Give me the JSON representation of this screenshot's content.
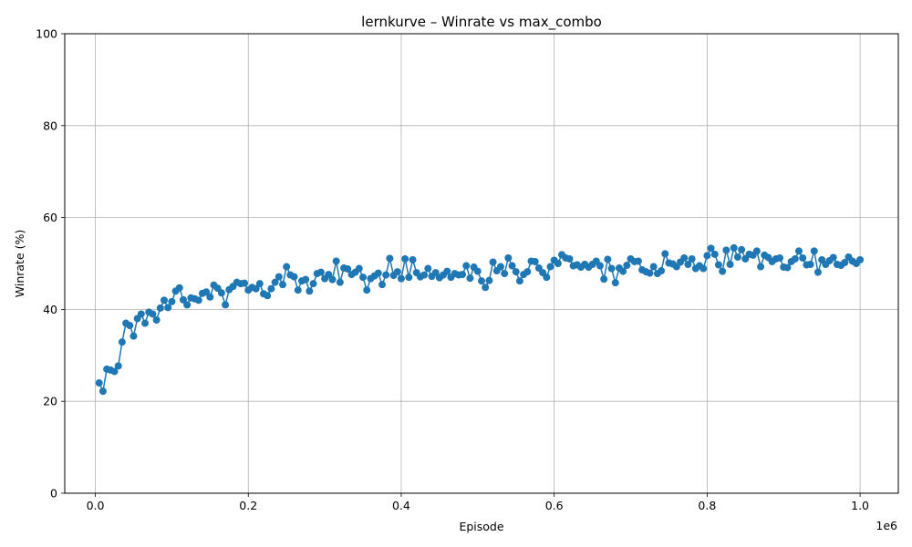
{
  "chart_data": {
    "type": "line",
    "title": "lernkurve – Winrate vs max_combo",
    "xlabel": "Episode",
    "ylabel": "Winrate (%)",
    "x_offset_label": "1e6",
    "xlim": [
      -40000,
      1050000
    ],
    "ylim": [
      0,
      100
    ],
    "x_ticks": [
      0,
      200000,
      400000,
      600000,
      800000,
      1000000
    ],
    "x_tick_labels": [
      "0.0",
      "0.2",
      "0.4",
      "0.6",
      "0.8",
      "1.0"
    ],
    "y_ticks": [
      0,
      20,
      40,
      60,
      80,
      100
    ],
    "y_tick_labels": [
      "0",
      "20",
      "40",
      "60",
      "80",
      "100"
    ],
    "grid": true,
    "color": "#1f77b4",
    "marker": "circle",
    "series": [
      {
        "x_start": 5000,
        "x_step": 5000,
        "values": [
          24.0,
          22.2,
          27.0,
          26.8,
          26.5,
          27.7,
          32.9,
          37.0,
          36.5,
          34.2,
          38.0,
          39.0,
          37.0,
          39.4,
          39.0,
          37.7,
          40.3,
          42.0,
          40.4,
          41.7,
          44.0,
          44.7,
          42.1,
          41.0,
          42.5,
          42.3,
          42.0,
          43.5,
          43.8,
          42.7,
          45.3,
          44.6,
          43.6,
          41.0,
          44.3,
          45.0,
          45.9,
          45.6,
          45.7,
          44.2,
          44.8,
          44.5,
          45.6,
          43.4,
          43.0,
          44.5,
          45.9,
          47.1,
          45.4,
          49.3,
          47.5,
          47.1,
          44.2,
          46.2,
          46.5,
          44.0,
          45.6,
          47.8,
          48.1,
          46.7,
          47.6,
          46.5,
          50.5,
          45.9,
          49.0,
          48.8,
          47.6,
          48.1,
          48.9,
          47.0,
          44.2,
          46.7,
          47.3,
          47.9,
          45.4,
          47.5,
          51.1,
          47.4,
          48.2,
          46.7,
          51.0,
          47.0,
          50.8,
          48.0,
          47.1,
          47.5,
          48.9,
          47.2,
          48.0,
          46.9,
          47.5,
          48.3,
          47.0,
          47.8,
          47.5,
          47.6,
          49.5,
          46.8,
          49.2,
          48.3,
          46.2,
          44.8,
          46.3,
          50.3,
          48.4,
          49.3,
          47.8,
          51.2,
          49.5,
          48.2,
          46.2,
          47.6,
          48.2,
          50.5,
          50.4,
          49.0,
          48.0,
          47.0,
          49.3,
          50.7,
          50.0,
          51.9,
          51.2,
          51.0,
          49.5,
          49.7,
          49.2,
          49.8,
          49.2,
          49.8,
          50.5,
          49.5,
          46.6,
          50.9,
          48.9,
          45.8,
          49.0,
          48.3,
          49.6,
          51.0,
          50.4,
          50.5,
          48.6,
          48.2,
          47.9,
          49.3,
          47.8,
          48.4,
          52.1,
          50.1,
          49.9,
          49.3,
          50.3,
          51.2,
          49.8,
          51.0,
          48.9,
          49.5,
          48.9,
          51.7,
          53.3,
          52.0,
          49.7,
          48.3,
          52.9,
          49.8,
          53.4,
          51.4,
          53.0,
          51.0,
          52.0,
          51.8,
          52.7,
          49.3,
          51.8,
          51.3,
          50.4,
          51.0,
          51.2,
          49.2,
          49.1,
          50.4,
          51.0,
          52.7,
          51.2,
          49.7,
          49.8,
          52.7,
          48.1,
          50.8,
          49.8,
          50.6,
          51.3,
          49.8,
          49.6,
          50.2,
          51.4,
          50.5,
          50.0,
          50.8
        ]
      }
    ]
  }
}
